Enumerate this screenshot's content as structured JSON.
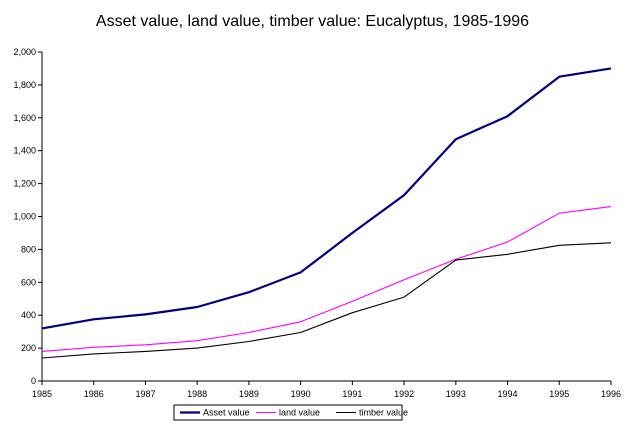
{
  "chart_data": {
    "type": "line",
    "title": "Asset value, land value, timber value: Eucalyptus, 1985-1996",
    "xlabel": "",
    "ylabel": "",
    "x": [
      "1985",
      "1986",
      "1987",
      "1988",
      "1989",
      "1990",
      "1991",
      "1992",
      "1993",
      "1994",
      "1995",
      "1996"
    ],
    "ylim": [
      0,
      2000
    ],
    "yticks": [
      0,
      200,
      400,
      600,
      800,
      1000,
      1200,
      1400,
      1600,
      1800,
      2000
    ],
    "ytick_labels": [
      "0",
      "200",
      "400",
      "600",
      "800",
      "1,000",
      "1,200",
      "1,400",
      "1,600",
      "1,800",
      "2,000"
    ],
    "grid": false,
    "legend_position": "bottom",
    "series": [
      {
        "name": "Asset value",
        "color": "#000080",
        "values": [
          320,
          375,
          405,
          450,
          540,
          660,
          900,
          1130,
          1470,
          1610,
          1850,
          1900
        ]
      },
      {
        "name": "land value",
        "color": "#ff00ff",
        "values": [
          180,
          205,
          220,
          245,
          295,
          360,
          485,
          615,
          740,
          845,
          1020,
          1060
        ]
      },
      {
        "name": "timber value",
        "color": "#000000",
        "values": [
          140,
          165,
          180,
          200,
          240,
          295,
          415,
          510,
          735,
          770,
          825,
          840
        ]
      }
    ]
  }
}
